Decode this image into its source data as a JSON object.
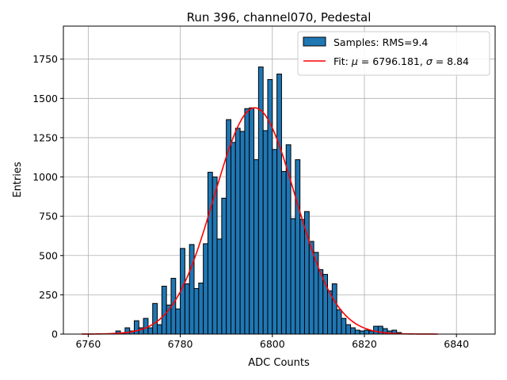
{
  "chart_data": {
    "type": "bar",
    "title": "Run 396, channel070, Pedestal",
    "xlabel": "ADC Counts",
    "ylabel": "Entries",
    "xlim": [
      6754.6,
      6848.4
    ],
    "ylim": [
      0,
      1960
    ],
    "xticks": [
      6760,
      6780,
      6800,
      6820,
      6840
    ],
    "yticks": [
      0,
      250,
      500,
      750,
      1000,
      1250,
      1500,
      1750
    ],
    "grid": true,
    "legend_position": "top-right",
    "bar_color": "#1f77b4",
    "fit_color": "#ff0000",
    "histogram": {
      "name": "Samples: RMS=9.4",
      "bin_edges_start": 6766,
      "bin_width": 1,
      "values": [
        20,
        5,
        40,
        20,
        85,
        40,
        100,
        40,
        195,
        60,
        305,
        185,
        355,
        160,
        545,
        320,
        570,
        290,
        325,
        575,
        1030,
        1000,
        605,
        865,
        1365,
        1220,
        1310,
        1290,
        1435,
        1440,
        1110,
        1700,
        1295,
        1620,
        1175,
        1655,
        1035,
        1205,
        735,
        1110,
        730,
        780,
        590,
        520,
        410,
        380,
        275,
        320,
        155,
        100,
        60,
        40,
        25,
        20,
        25,
        20,
        50,
        50,
        35,
        20,
        25,
        10
      ]
    },
    "fit": {
      "name": "Fit: μ = 6796.181, σ = 8.84",
      "label_prefix": "Fit: ",
      "mu_symbol": "μ",
      "mu_text": " = 6796.181, ",
      "sigma_symbol": "σ",
      "sigma_text": " = 8.84",
      "mu": 6796.181,
      "sigma": 8.84,
      "amplitude": 1440,
      "x_range": [
        6758.6,
        6836.0
      ]
    }
  }
}
